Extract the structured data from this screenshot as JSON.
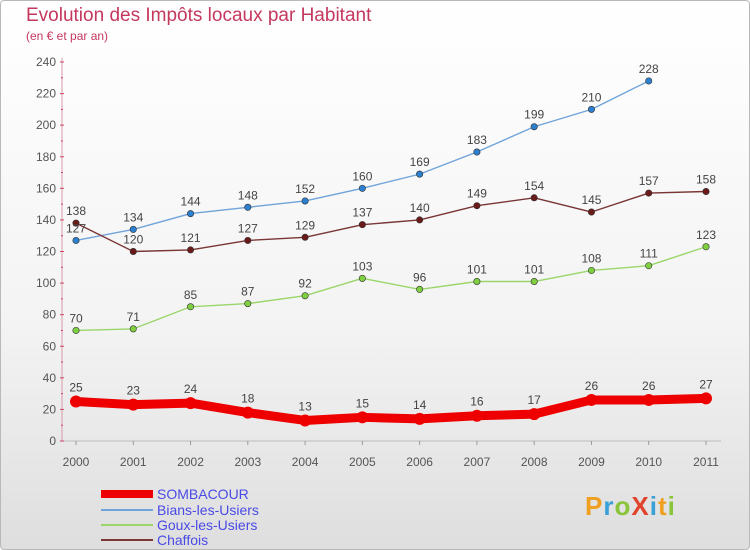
{
  "header": {
    "title": "Evolution des Impôts locaux par Habitant",
    "subtitle": "(en € et par an)"
  },
  "logo": {
    "text": "ProXiti",
    "colors": [
      "#f0a020",
      "#3aa0d8",
      "#8ac43a",
      "#e0442e",
      "#3aa0d8",
      "#f0a020",
      "#8ac43a"
    ]
  },
  "chart_data": {
    "type": "line",
    "categories": [
      "2000",
      "2001",
      "2002",
      "2003",
      "2004",
      "2005",
      "2006",
      "2007",
      "2008",
      "2009",
      "2010",
      "2011"
    ],
    "ylim": [
      0,
      240
    ],
    "yticks": [
      0,
      20,
      40,
      60,
      80,
      100,
      120,
      140,
      160,
      180,
      200,
      220,
      240
    ],
    "grid": false,
    "legend_position": "bottom-left",
    "series": [
      {
        "name": "SOMBACOUR",
        "color": "#ee0000",
        "marker_color": "#ee0000",
        "thick": true,
        "values": [
          25,
          23,
          24,
          18,
          13,
          15,
          14,
          16,
          17,
          26,
          26,
          27
        ]
      },
      {
        "name": "Bians-les-Usiers",
        "color": "#6fa3d9",
        "marker_color": "#2d7fd0",
        "thick": false,
        "values": [
          127,
          134,
          144,
          148,
          152,
          160,
          169,
          183,
          199,
          210,
          228,
          null
        ]
      },
      {
        "name": "Goux-les-Usiers",
        "color": "#9ad66a",
        "marker_color": "#7ed040",
        "thick": false,
        "values": [
          70,
          71,
          85,
          87,
          92,
          103,
          96,
          101,
          101,
          108,
          111,
          123
        ]
      },
      {
        "name": "Chaffois",
        "color": "#7a3535",
        "marker_color": "#6b1a1a",
        "thick": false,
        "values": [
          138,
          120,
          121,
          127,
          129,
          137,
          140,
          149,
          154,
          145,
          157,
          158
        ]
      }
    ]
  }
}
